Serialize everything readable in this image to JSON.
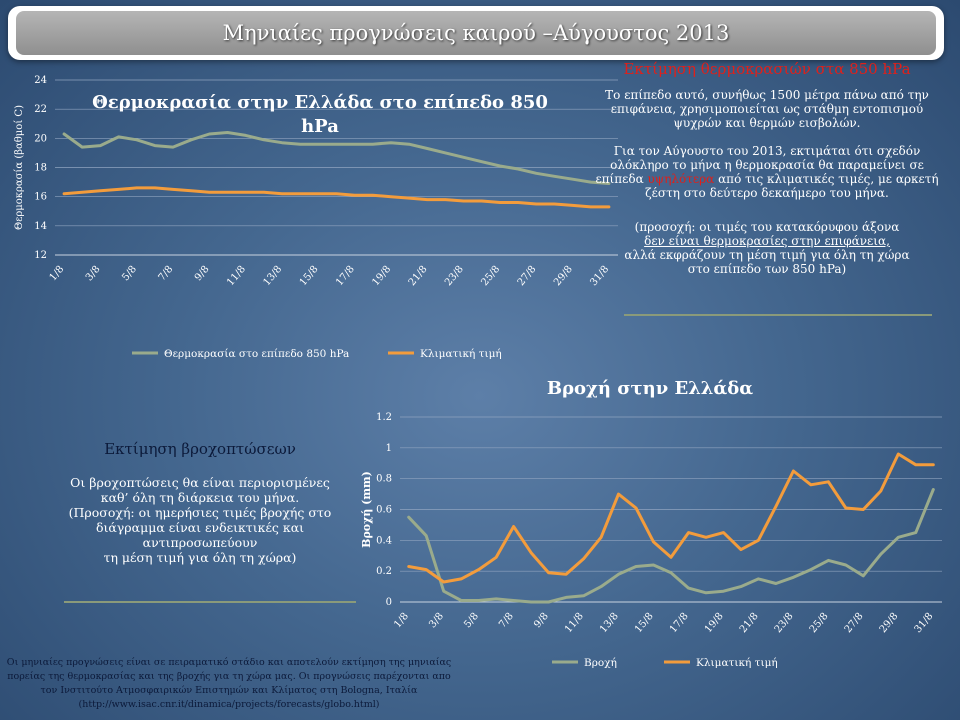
{
  "banner": {
    "title": "Μηνιαίες προγνώσεις καιρού –Αύγουστος 2013"
  },
  "chart_data": [
    {
      "type": "line",
      "title": "Θερμοκρασία στην Ελλάδα στο επίπεδο 850 hPa",
      "ylabel": "Θερμοκρασία (βαθμοί C)",
      "xlabel": "",
      "ylim": [
        12,
        24
      ],
      "yticks": [
        12,
        14,
        16,
        18,
        20,
        22,
        24
      ],
      "x": [
        "1/8",
        "2/8",
        "3/8",
        "4/8",
        "5/8",
        "6/8",
        "7/8",
        "8/8",
        "9/8",
        "10/8",
        "11/8",
        "12/8",
        "13/8",
        "14/8",
        "15/8",
        "16/8",
        "17/8",
        "18/8",
        "19/8",
        "20/8",
        "21/8",
        "22/8",
        "23/8",
        "24/8",
        "25/8",
        "26/8",
        "27/8",
        "28/8",
        "29/8",
        "30/8",
        "31/8"
      ],
      "xtick_labels": [
        "1/8",
        "3/8",
        "5/8",
        "7/8",
        "9/8",
        "11/8",
        "13/8",
        "15/8",
        "17/8",
        "19/8",
        "21/8",
        "23/8",
        "25/8",
        "27/8",
        "29/8",
        "31/8"
      ],
      "legend_position": "bottom",
      "series": [
        {
          "name": "Θερμοκρασία στο επίπεδο 850 hPa",
          "color": "#9aab8c",
          "values": [
            20.3,
            19.4,
            19.5,
            20.1,
            19.9,
            19.5,
            19.4,
            19.9,
            20.3,
            20.4,
            20.2,
            19.9,
            19.7,
            19.6,
            19.6,
            19.6,
            19.6,
            19.6,
            19.7,
            19.6,
            19.3,
            19.0,
            18.7,
            18.4,
            18.1,
            17.9,
            17.6,
            17.4,
            17.2,
            17.0,
            16.9
          ]
        },
        {
          "name": "Κλιματική τιμή",
          "color": "#f39c3c",
          "values": [
            16.2,
            16.3,
            16.4,
            16.5,
            16.6,
            16.6,
            16.5,
            16.4,
            16.3,
            16.3,
            16.3,
            16.3,
            16.2,
            16.2,
            16.2,
            16.2,
            16.1,
            16.1,
            16.0,
            15.9,
            15.8,
            15.8,
            15.7,
            15.7,
            15.6,
            15.6,
            15.5,
            15.5,
            15.4,
            15.3,
            15.3
          ]
        }
      ]
    },
    {
      "type": "line",
      "title": "Βροχή στην Ελλάδα",
      "ylabel": "Βροχή (mm)",
      "xlabel": "",
      "ylim": [
        0,
        1.2
      ],
      "yticks": [
        0,
        0.2,
        0.4,
        0.6,
        0.8,
        1,
        1.2
      ],
      "x": [
        "1/8",
        "2/8",
        "3/8",
        "4/8",
        "5/8",
        "6/8",
        "7/8",
        "8/8",
        "9/8",
        "10/8",
        "11/8",
        "12/8",
        "13/8",
        "14/8",
        "15/8",
        "16/8",
        "17/8",
        "18/8",
        "19/8",
        "20/8",
        "21/8",
        "22/8",
        "23/8",
        "24/8",
        "25/8",
        "26/8",
        "27/8",
        "28/8",
        "29/8",
        "30/8",
        "31/8"
      ],
      "xtick_labels": [
        "1/8",
        "3/8",
        "5/8",
        "7/8",
        "9/8",
        "11/8",
        "13/8",
        "15/8",
        "17/8",
        "19/8",
        "21/8",
        "23/8",
        "25/8",
        "27/8",
        "29/8",
        "31/8"
      ],
      "legend_position": "bottom",
      "series": [
        {
          "name": "Βροχή",
          "color": "#9aab8c",
          "values": [
            0.55,
            0.43,
            0.07,
            0.01,
            0.01,
            0.02,
            0.01,
            0.0,
            0.0,
            0.03,
            0.04,
            0.1,
            0.18,
            0.23,
            0.24,
            0.19,
            0.09,
            0.06,
            0.07,
            0.1,
            0.15,
            0.12,
            0.16,
            0.21,
            0.27,
            0.24,
            0.17,
            0.31,
            0.42,
            0.45,
            0.73
          ]
        },
        {
          "name": "Κλιματική τιμή",
          "color": "#f39c3c",
          "values": [
            0.23,
            0.21,
            0.13,
            0.15,
            0.21,
            0.29,
            0.49,
            0.32,
            0.19,
            0.18,
            0.28,
            0.42,
            0.7,
            0.61,
            0.39,
            0.29,
            0.45,
            0.42,
            0.45,
            0.34,
            0.4,
            0.62,
            0.85,
            0.76,
            0.78,
            0.61,
            0.6,
            0.72,
            0.96,
            0.89,
            0.89
          ]
        }
      ]
    }
  ],
  "temp_panel": {
    "heading": "Εκτίμηση θερμοκρασιών στα 850 hPa",
    "para1": "Το επίπεδο αυτό, συνήθως 1500 μέτρα πάνω από την επιφάνεια, χρησιμοποιείται ως στάθμη εντοπισμού ψυχρών και θερμών εισβολών.",
    "para2_before": "Για τον Αύγουστο του 2013, εκτιμάται ότι σχεδόν ολόκληρο το μήνα η θερμοκρασία θα παραμείνει σε επίπεδα ",
    "para2_red": "υψηλότερα",
    "para2_after": " από τις κλιματικές τιμές, με αρκετή ζέστη στο δεύτερο δεκαήμερο του μήνα.",
    "para3_line1": "(προσοχή: οι τιμές του κατακόρυφου άξονα",
    "para3_line2": "δεν είναι θερμοκρασίες στην επιφάνεια,",
    "para3_line3": "αλλά εκφράζουν τη μέση τιμή για όλη τη χώρα",
    "para3_line4": "στο επίπεδο των 850 hPa)"
  },
  "rain_panel": {
    "heading": "Εκτίμηση βροχοπτώσεων",
    "text1": "Οι βροχοπτώσεις θα είναι περιορισμένες καθ’ όλη τη διάρκεια του μήνα.",
    "text2": "(Προσοχή: οι ημερήσιες τιμές βροχής στο διάγραμμα είναι ενδεικτικές και αντιπροσωπεύουν",
    "text3": "τη μέση τιμή για όλη τη χώρα)"
  },
  "footer": {
    "text": "Οι μηνιαίες προγνώσεις είναι σε πειραματικό στάδιο και αποτελούν εκτίμηση της μηνιαίας πορείας της θερμοκρασίας και της βροχής για τη χώρα μας. Οι προγνώσεις παρέχονται απο τον Ινστιτούτο Ατμοσφαιρικών Επιστημών και Κλίματος στη Bologna, Ιταλία (http://www.isac.cnr.it/dinamica/projects/forecasts/globo.html)"
  }
}
